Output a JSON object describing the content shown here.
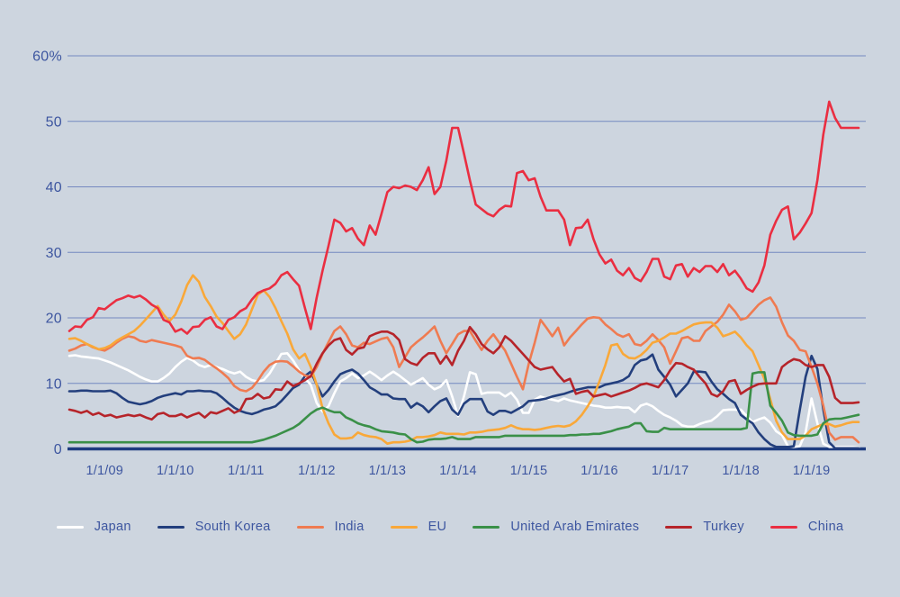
{
  "colors": {
    "background": "#cdd5df",
    "axis_text": "#3d56a0",
    "gridline": "#7589c0",
    "zero_axis": "#1e3c80"
  },
  "chart_data": {
    "type": "line",
    "title": "",
    "xlabel": "",
    "ylabel": "",
    "grid": true,
    "legend_position": "bottom",
    "ylim": [
      0,
      60
    ],
    "frequency": "monthly",
    "x_start": "Jul 2008",
    "months_before_first_tick": 6,
    "y_axis": {
      "ticks": [
        {
          "label": "60%",
          "value": 60
        },
        {
          "label": "50",
          "value": 50
        },
        {
          "label": "40",
          "value": 40
        },
        {
          "label": "30",
          "value": 30
        },
        {
          "label": "20",
          "value": 20
        },
        {
          "label": "10",
          "value": 10
        },
        {
          "label": "0",
          "value": 0
        }
      ]
    },
    "x_axis": {
      "ticks": [
        {
          "label": "1/1/09"
        },
        {
          "label": "1/1/10"
        },
        {
          "label": "1/1/11"
        },
        {
          "label": "1/1/12"
        },
        {
          "label": "1/1/13"
        },
        {
          "label": "1/1/14"
        },
        {
          "label": "1/1/15"
        },
        {
          "label": "1/1/16"
        },
        {
          "label": "1/1/17"
        },
        {
          "label": "1/1/18"
        },
        {
          "label": "1/1/19"
        }
      ]
    },
    "series": [
      {
        "name": "Japan",
        "color": "#ffffff",
        "values": [
          14.2,
          14.3,
          14.1,
          14,
          13.9,
          13.8,
          13.5,
          13.2,
          12.8,
          12.4,
          12,
          11.5,
          11,
          10.6,
          10.3,
          10.3,
          10.8,
          11.5,
          12.5,
          13.3,
          13.9,
          13.5,
          12.8,
          12.5,
          12.8,
          12.5,
          12.2,
          11.8,
          11.5,
          11.8,
          11,
          10.5,
          10.3,
          10.5,
          11.5,
          13,
          14.5,
          14.6,
          13.5,
          12,
          10.8,
          9.8,
          7,
          5.7,
          6.5,
          8.5,
          10.3,
          10.8,
          11.5,
          10.8,
          11.2,
          11.8,
          11.2,
          10.5,
          11.2,
          11.8,
          11.2,
          10.5,
          9.8,
          10.3,
          10.8,
          9.8,
          9.1,
          9.5,
          10.5,
          8,
          5,
          8,
          11.7,
          11.4,
          8.4,
          8.6,
          8.6,
          8.6,
          8,
          8.6,
          7.5,
          5.5,
          5.5,
          7.5,
          8,
          7.7,
          7.5,
          7.3,
          7.7,
          7.4,
          7.2,
          7,
          6.8,
          6.6,
          6.5,
          6.3,
          6.3,
          6.4,
          6.3,
          6.3,
          5.6,
          6.6,
          6.9,
          6.5,
          5.8,
          5.2,
          4.8,
          4.3,
          3.6,
          3.4,
          3.4,
          3.8,
          4.1,
          4.3,
          5,
          5.9,
          6,
          6,
          6,
          5,
          4.1,
          4.5,
          4.8,
          4,
          2.7,
          2.1,
          0.4,
          0.3,
          0.4,
          2.5,
          7.7,
          3.9,
          0.8,
          0.3,
          0.3,
          0.3,
          0.3,
          0.3,
          0.2
        ]
      },
      {
        "name": "South Korea",
        "color": "#233f7d",
        "values": [
          8.8,
          8.8,
          8.9,
          8.9,
          8.8,
          8.8,
          8.8,
          8.9,
          8.5,
          7.8,
          7.2,
          7,
          6.8,
          7,
          7.3,
          7.8,
          8.1,
          8.3,
          8.5,
          8.3,
          8.8,
          8.8,
          8.9,
          8.8,
          8.8,
          8.5,
          7.8,
          7,
          6.3,
          5.8,
          5.5,
          5.3,
          5.6,
          6,
          6.2,
          6.5,
          7.3,
          8.3,
          9.3,
          9.8,
          11.1,
          11.8,
          9.8,
          8,
          9,
          10.3,
          11.4,
          11.8,
          12.1,
          11.5,
          10.5,
          9.4,
          8.9,
          8.3,
          8.3,
          7.7,
          7.6,
          7.6,
          6.3,
          7,
          6.5,
          5.6,
          6.5,
          7.3,
          7.7,
          6,
          5.2,
          6.9,
          7.6,
          7.6,
          7.6,
          5.7,
          5.2,
          5.8,
          5.8,
          5.5,
          6,
          6.5,
          7.3,
          7.4,
          7.5,
          7.7,
          8,
          8.2,
          8.4,
          8.7,
          9,
          9.2,
          9.4,
          9.4,
          9.4,
          9.8,
          10,
          10.2,
          10.5,
          11.1,
          12.8,
          13.5,
          13.7,
          14.4,
          12.1,
          11,
          9.8,
          8,
          9,
          10,
          11.8,
          11.8,
          11.7,
          10.3,
          9.1,
          8.4,
          7.6,
          7,
          5.2,
          4.5,
          3.9,
          2.5,
          1.5,
          0.7,
          0.3,
          0.3,
          0.3,
          0.4,
          5.9,
          11,
          14.2,
          12.2,
          6,
          1,
          0.1,
          0.1,
          0.1,
          0.1,
          0.1
        ]
      },
      {
        "name": "India",
        "color": "#ef7b51",
        "values": [
          15,
          15.3,
          15.8,
          16,
          15.5,
          15.2,
          15,
          15.5,
          16.2,
          16.8,
          17.2,
          17,
          16.5,
          16.3,
          16.6,
          16.4,
          16.2,
          16,
          15.8,
          15.5,
          14.2,
          13.8,
          13.9,
          13.6,
          12.9,
          12.3,
          11.6,
          10.8,
          9.6,
          9,
          8.8,
          9.3,
          10.4,
          11.8,
          12.8,
          13.3,
          13.4,
          13.3,
          12.6,
          11.8,
          11.2,
          11,
          12.5,
          14.5,
          16.3,
          18,
          18.7,
          17.5,
          15.8,
          15.5,
          16.2,
          16,
          16.4,
          16.8,
          17,
          15.5,
          12.5,
          14,
          15.5,
          16.3,
          17,
          17.8,
          18.7,
          16.5,
          14.6,
          16,
          17.5,
          18,
          18,
          16.5,
          15.1,
          16.5,
          17.5,
          16.2,
          15,
          13,
          11,
          9.1,
          13,
          16.2,
          19.7,
          18.5,
          17.2,
          18.5,
          15.8,
          17,
          18,
          19,
          19.9,
          20.1,
          20,
          19,
          18.3,
          17.5,
          17.1,
          17.5,
          16,
          15.8,
          16.5,
          17.5,
          16.6,
          15.5,
          13,
          14.9,
          16.9,
          17.1,
          16.5,
          16.5,
          18,
          18.7,
          19.4,
          20.5,
          22,
          21,
          19.7,
          20,
          21,
          22,
          22.7,
          23.1,
          21.7,
          19.3,
          17.3,
          16.5,
          15.1,
          14.9,
          12.5,
          10,
          6.6,
          2.5,
          1.4,
          1.8,
          1.8,
          1.8,
          1
        ]
      },
      {
        "name": "EU",
        "color": "#f9a839",
        "values": [
          16.8,
          16.9,
          16.5,
          16,
          15.6,
          15.2,
          15.4,
          15.8,
          16.5,
          17,
          17.5,
          18,
          18.8,
          19.8,
          20.8,
          21.8,
          20.5,
          19.5,
          20.5,
          22.5,
          25,
          26.5,
          25.5,
          23.2,
          21.8,
          20.2,
          19.2,
          18,
          16.8,
          17.5,
          19,
          21.3,
          23.5,
          24.2,
          23.2,
          21.5,
          19.5,
          17.6,
          15.2,
          13.8,
          14.5,
          12.5,
          9.8,
          6.2,
          3.9,
          2.2,
          1.6,
          1.6,
          1.7,
          2.5,
          2.1,
          1.9,
          1.8,
          1.5,
          0.8,
          1,
          1,
          1.1,
          1.3,
          1.8,
          1.8,
          1.9,
          2.1,
          2.5,
          2.3,
          2.3,
          2.3,
          2.2,
          2.5,
          2.5,
          2.6,
          2.8,
          2.9,
          3,
          3.2,
          3.6,
          3.2,
          3,
          3,
          2.9,
          3,
          3.2,
          3.4,
          3.5,
          3.4,
          3.6,
          4.2,
          5.2,
          6.5,
          8,
          10.3,
          12.8,
          15.8,
          16,
          14.5,
          13.9,
          13.8,
          14.3,
          15.1,
          16.2,
          16.5,
          17,
          17.6,
          17.6,
          18,
          18.5,
          19,
          19.2,
          19.3,
          19.3,
          18.5,
          17.2,
          17.5,
          17.9,
          17,
          15.8,
          14.9,
          12.8,
          10.7,
          7.6,
          4.3,
          2.5,
          1.5,
          1.5,
          1.5,
          2,
          3,
          3.4,
          3.8,
          3.8,
          3.4,
          3.6,
          3.9,
          4.1,
          4.1
        ]
      },
      {
        "name": "United Arab Emirates",
        "color": "#3a9048",
        "values": [
          1,
          1,
          1,
          1,
          1,
          1,
          1,
          1,
          1,
          1,
          1,
          1,
          1,
          1,
          1,
          1,
          1,
          1,
          1,
          1,
          1,
          1,
          1,
          1,
          1,
          1,
          1,
          1,
          1,
          1,
          1,
          1,
          1.2,
          1.4,
          1.7,
          2,
          2.4,
          2.8,
          3.2,
          3.8,
          4.6,
          5.4,
          6,
          6.3,
          5.9,
          5.6,
          5.6,
          4.8,
          4.4,
          3.9,
          3.6,
          3.4,
          3,
          2.7,
          2.6,
          2.5,
          2.3,
          2.2,
          1.5,
          1,
          1.1,
          1.4,
          1.5,
          1.5,
          1.6,
          1.8,
          1.5,
          1.5,
          1.5,
          1.8,
          1.8,
          1.8,
          1.8,
          1.8,
          2,
          2,
          2,
          2,
          2,
          2,
          2,
          2,
          2,
          2,
          2,
          2.1,
          2.1,
          2.2,
          2.2,
          2.3,
          2.3,
          2.5,
          2.7,
          3,
          3.2,
          3.4,
          3.9,
          3.9,
          2.7,
          2.6,
          2.6,
          3.2,
          3,
          3,
          3,
          3,
          3,
          3,
          3,
          3,
          3,
          3,
          3,
          3,
          3,
          3.2,
          11.5,
          11.7,
          11.7,
          6.6,
          5.5,
          4.3,
          2.5,
          2.1,
          2,
          2,
          2,
          2.2,
          3.9,
          4.5,
          4.6,
          4.6,
          4.8,
          5,
          5.2
        ]
      },
      {
        "name": "Turkey",
        "color": "#b6242a",
        "values": [
          6,
          5.8,
          5.5,
          5.8,
          5.2,
          5.5,
          5,
          5.2,
          4.8,
          5,
          5.2,
          5,
          5.2,
          4.8,
          4.5,
          5.3,
          5.5,
          5,
          5,
          5.3,
          4.8,
          5.2,
          5.5,
          4.8,
          5.6,
          5.4,
          5.8,
          6.2,
          5.5,
          5.9,
          7.6,
          7.7,
          8.4,
          7.7,
          7.9,
          9.1,
          9,
          10.3,
          9.6,
          10,
          10.5,
          11.1,
          13,
          14.6,
          15.8,
          16.6,
          16.9,
          15.1,
          14.4,
          15.3,
          15.5,
          17.2,
          17.6,
          17.9,
          17.9,
          17.5,
          16.6,
          13.7,
          13.1,
          12.8,
          13.9,
          14.6,
          14.6,
          13,
          14.2,
          12.8,
          15,
          16.5,
          18.6,
          17.5,
          16,
          15.2,
          14.6,
          15.5,
          17.2,
          16.5,
          15.5,
          14.5,
          13.5,
          12.5,
          12.1,
          12.3,
          12.5,
          11.3,
          10.3,
          10.7,
          8.4,
          8.7,
          8.9,
          8,
          8.2,
          8.4,
          8,
          8.3,
          8.6,
          8.9,
          9.3,
          9.8,
          10,
          9.7,
          9.4,
          10.5,
          12,
          13.1,
          13,
          12.5,
          12.1,
          11,
          10,
          8.4,
          8,
          8.8,
          10.3,
          10.5,
          8.4,
          9,
          9.5,
          9.9,
          10,
          10,
          10,
          12.5,
          13.2,
          13.7,
          13.5,
          12.8,
          12.5,
          12.8,
          12.8,
          11,
          7.8,
          7,
          7,
          7,
          7.1
        ]
      },
      {
        "name": "China",
        "color": "#ea2e41",
        "values": [
          18,
          18.7,
          18.6,
          19.7,
          20.1,
          21.5,
          21.3,
          22,
          22.7,
          23,
          23.4,
          23.1,
          23.4,
          22.8,
          22,
          21.5,
          19.7,
          19.3,
          17.9,
          18.3,
          17.6,
          18.6,
          18.7,
          19.7,
          20.1,
          18.7,
          18.3,
          19.7,
          20.1,
          21,
          21.5,
          22.8,
          23.8,
          24.2,
          24.5,
          25.2,
          26.5,
          27,
          25.9,
          24.9,
          21.5,
          18.3,
          23.1,
          27.2,
          31,
          35,
          34.5,
          33.2,
          33.7,
          32.1,
          31.1,
          34.1,
          32.7,
          35.9,
          39.2,
          40,
          39.8,
          40.2,
          40,
          39.5,
          41,
          43,
          38.9,
          40,
          44,
          49,
          49,
          45.1,
          41,
          37.3,
          36.6,
          35.9,
          35.5,
          36.5,
          37.1,
          37,
          42.1,
          42.4,
          41,
          41.3,
          38.5,
          36.4,
          36.4,
          36.4,
          35,
          31.1,
          33.7,
          33.8,
          35,
          32,
          29.7,
          28.3,
          28.9,
          27.2,
          26.5,
          27.6,
          26.1,
          25.6,
          27,
          29,
          29,
          26.3,
          25.9,
          28,
          28.2,
          26.3,
          27.6,
          27,
          27.9,
          27.9,
          27,
          28.2,
          26.5,
          27.2,
          26,
          24.5,
          24,
          25.4,
          28,
          32.7,
          34.8,
          36.5,
          37,
          32,
          33,
          34.4,
          36,
          41,
          48,
          53,
          50.5,
          49,
          49,
          49,
          49
        ]
      }
    ]
  }
}
